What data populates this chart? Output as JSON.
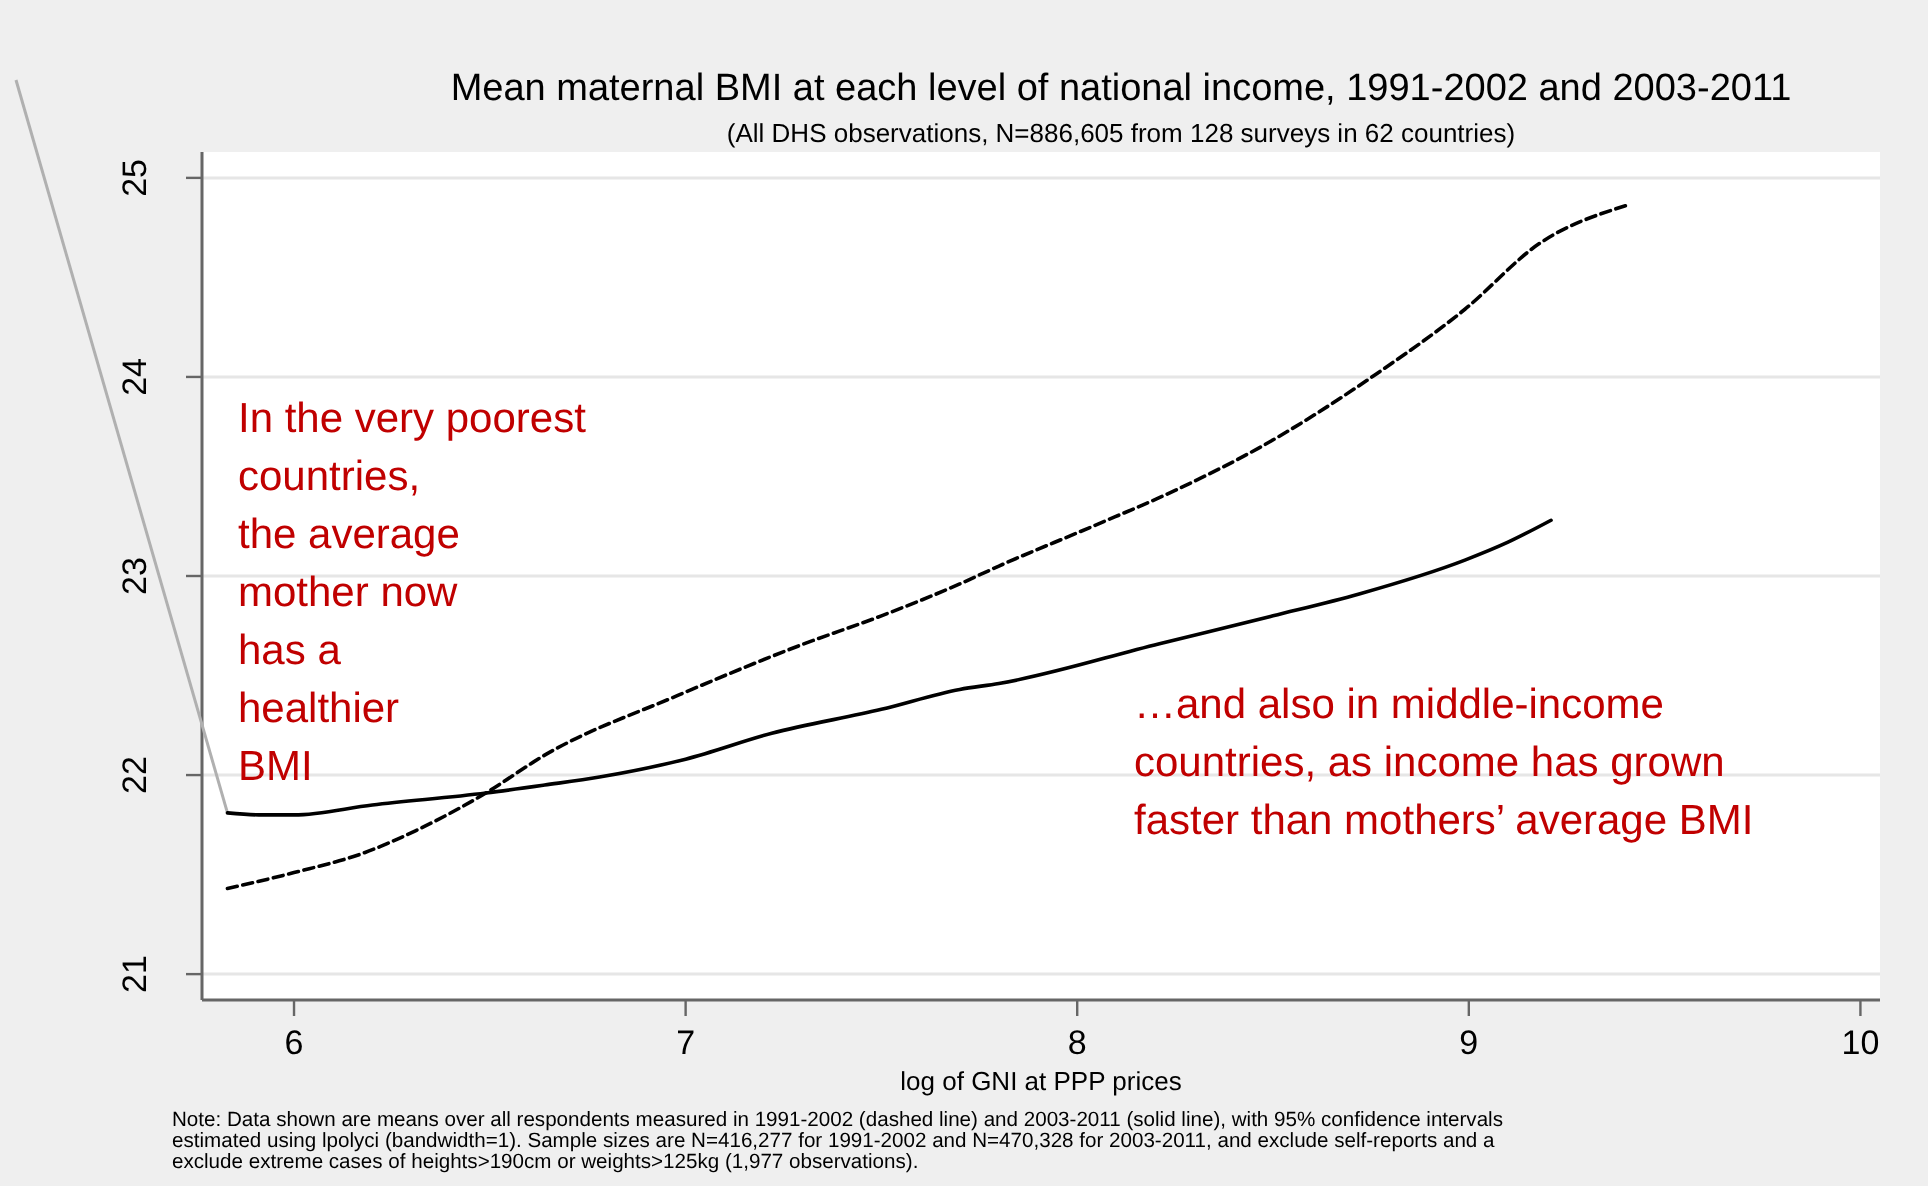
{
  "chart_data": {
    "type": "line",
    "title": "Mean maternal BMI at each level of national income, 1991-2002 and 2003-2011",
    "subtitle": "(All DHS observations, N=886,605 from 128 surveys in 62 countries)",
    "xlabel": "log of GNI at PPP prices",
    "xlim": [
      5.765,
      10.05
    ],
    "xticks": [
      6,
      7,
      8,
      9,
      10
    ],
    "ylim": [
      20.87,
      25.13
    ],
    "yticks": [
      21,
      22,
      23,
      24,
      25
    ],
    "grid": "y",
    "series": [
      {
        "color": "#000000",
        "line_style": "solid",
        "x": [
          5.83,
          5.91,
          6.0,
          6.2,
          6.49,
          6.64,
          6.78,
          7.0,
          7.22,
          7.5,
          7.7,
          7.8,
          8.21,
          8.5,
          8.72,
          8.99,
          9.1,
          9.21
        ],
        "values": [
          21.81,
          21.8,
          21.8,
          21.85,
          21.91,
          21.95,
          21.99,
          22.08,
          22.21,
          22.33,
          22.43,
          22.46,
          22.66,
          22.8,
          22.91,
          23.08,
          23.17,
          23.28
        ]
      },
      {
        "color": "#000000",
        "line_style": "dashed",
        "x": [
          5.83,
          6.0,
          6.18,
          6.31,
          6.49,
          6.64,
          6.98,
          7.29,
          7.5,
          7.7,
          7.8,
          8.04,
          8.25,
          8.47,
          8.76,
          8.99,
          9.18,
          9.4
        ],
        "values": [
          21.43,
          21.51,
          21.61,
          21.72,
          21.91,
          22.1,
          22.4,
          22.65,
          22.8,
          22.96,
          23.05,
          23.25,
          23.43,
          23.65,
          24.01,
          24.34,
          24.67,
          24.86
        ]
      }
    ],
    "annotations": [
      "In the very poorest\ncountries,\nthe average\nmother now\nhas a\nhealthier\nBMI",
      "…and also in middle-income\ncountries, as income has grown\nfaster than mothers’ average BMI",
      "Note: Data shown are means over all respondents measured in 1991-2002 (dashed line) and 2003-2011 (solid line), with 95% confidence intervals\nestimated using lpolyci (bandwidth=1). Sample sizes are N=416,277 for 1991-2002 and N=470,328 for 2003-2011, and exclude self-reports and a\nexclude extreme cases of heights>190cm or weights>125kg (1,977 observations)."
    ]
  }
}
